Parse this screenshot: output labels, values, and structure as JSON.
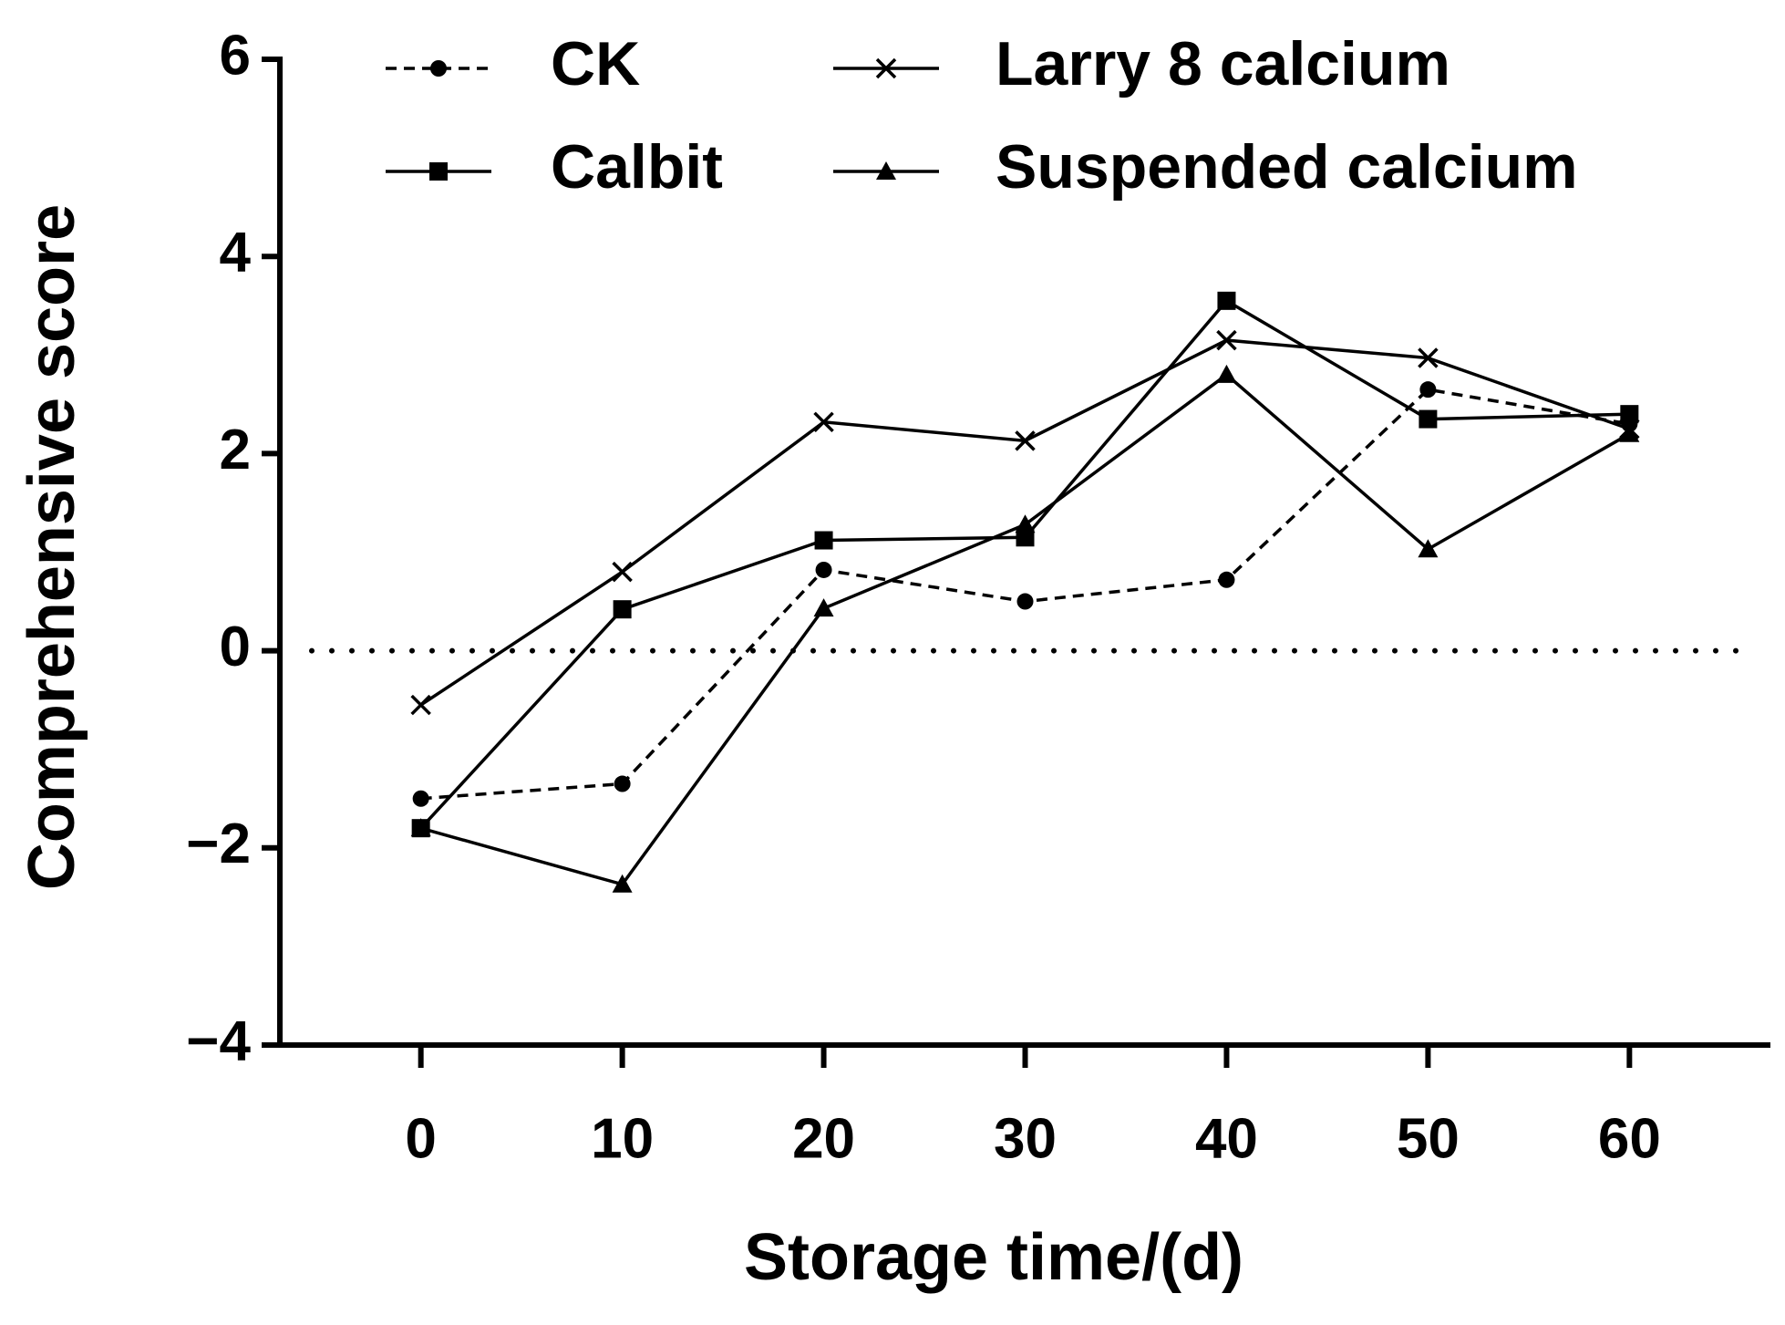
{
  "chart_data": {
    "type": "line",
    "xlabel": "Storage time/(d)",
    "ylabel": "Comprehensive score",
    "x": [
      0,
      10,
      20,
      30,
      40,
      50,
      60
    ],
    "series": [
      {
        "name": "CK",
        "color": "#000000",
        "marker": "circle",
        "dash": true,
        "values": [
          -1.5,
          -1.35,
          0.82,
          0.5,
          0.72,
          2.65,
          2.3
        ]
      },
      {
        "name": "Larry 8 calcium",
        "color": "#000000",
        "marker": "cross",
        "dash": false,
        "values": [
          -0.55,
          0.8,
          2.32,
          2.13,
          3.15,
          2.97,
          2.25
        ]
      },
      {
        "name": "Calbit",
        "color": "#000000",
        "marker": "square",
        "dash": false,
        "values": [
          -1.8,
          0.42,
          1.12,
          1.15,
          3.55,
          2.35,
          2.4
        ]
      },
      {
        "name": "Suspended calcium",
        "color": "#000000",
        "marker": "triangle",
        "dash": false,
        "values": [
          -1.8,
          -2.37,
          0.43,
          1.28,
          2.8,
          1.03,
          2.2
        ]
      }
    ],
    "hline": 0,
    "xlim": [
      -7,
      67
    ],
    "xticks": [
      0,
      10,
      20,
      30,
      40,
      50,
      60
    ],
    "ylim": [
      -4,
      6
    ],
    "yticks": [
      {
        "value": -4,
        "label": "−4"
      },
      {
        "value": -2,
        "label": "−2"
      },
      0,
      2,
      4,
      6
    ],
    "grid": false
  }
}
